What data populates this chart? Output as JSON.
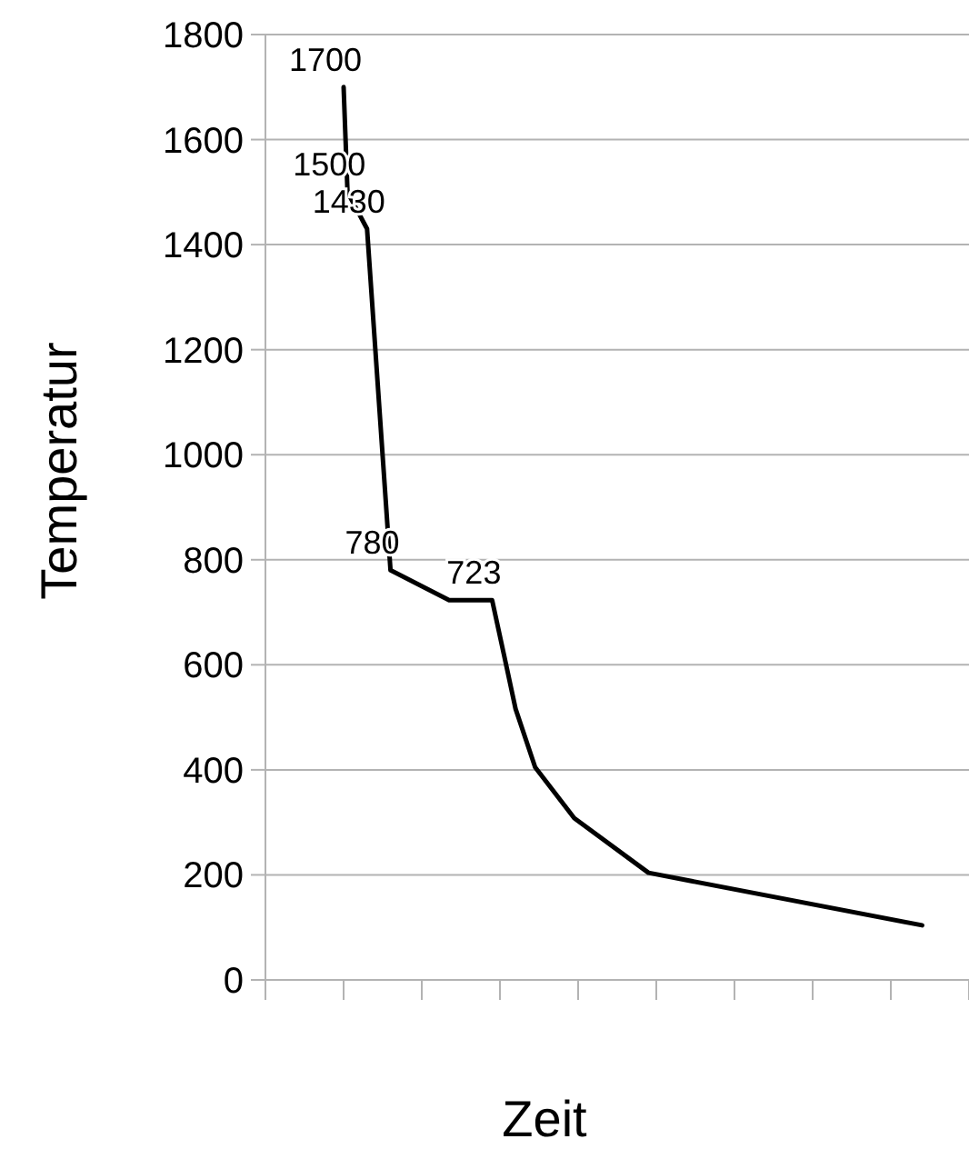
{
  "chart_data": {
    "type": "line",
    "xlabel": "Zeit",
    "ylabel": "Temperatur",
    "categories": [
      null,
      null,
      null,
      null,
      null,
      null,
      null,
      null,
      null,
      null,
      null,
      null,
      null,
      null,
      null,
      null,
      null,
      null,
      null,
      null,
      null,
      null,
      null,
      null,
      null,
      null,
      null,
      null,
      null,
      null,
      null,
      null,
      null,
      null,
      null,
      null,
      null,
      null,
      null,
      null,
      null,
      null,
      null,
      null,
      null,
      null,
      null,
      null,
      null,
      null,
      null,
      null,
      null,
      null,
      null,
      null,
      null,
      null,
      null,
      null,
      null,
      null,
      null,
      null,
      null,
      null,
      null,
      null,
      null,
      null,
      null,
      null,
      null,
      null,
      null,
      null,
      null,
      null,
      null,
      null,
      null,
      null,
      null,
      null,
      null,
      null,
      null,
      null,
      null,
      null,
      null,
      null,
      null,
      null,
      null,
      null,
      null,
      null,
      null,
      null,
      null,
      null,
      null,
      null,
      null,
      null,
      null,
      null,
      null,
      null,
      null,
      null,
      null,
      null,
      null,
      null,
      null,
      null,
      null,
      null,
      null,
      null,
      null,
      null,
      null,
      null,
      null,
      null,
      null,
      null,
      null,
      null,
      null,
      null,
      null,
      null,
      null,
      null,
      null,
      null,
      null,
      null,
      null,
      null,
      null,
      null,
      null,
      null,
      null,
      null,
      null,
      null,
      null,
      null,
      null,
      null,
      null,
      null,
      null,
      null,
      null,
      null,
      null,
      null,
      null,
      null,
      null,
      null,
      null,
      null,
      null,
      null,
      null,
      null,
      null,
      null,
      null,
      null,
      null,
      null,
      null
    ],
    "series": [
      {
        "color": "#000000",
        "values": [
          null,
          null,
          null,
          null,
          null,
          null,
          null,
          null,
          null,
          null,
          null,
          null,
          null,
          null,
          null,
          null,
          null,
          null,
          null,
          null,
          1700,
          1500,
          null,
          null,
          null,
          null,
          1430,
          null,
          null,
          null,
          null,
          null,
          780,
          null,
          null,
          null,
          null,
          null,
          null,
          null,
          null,
          null,
          null,
          null,
          null,
          null,
          null,
          723,
          null,
          null,
          null,
          null,
          null,
          null,
          null,
          null,
          null,
          null,
          723,
          null,
          null,
          620,
          null,
          null,
          516,
          null,
          null,
          null,
          null,
          405,
          null,
          null,
          null,
          null,
          null,
          null,
          null,
          null,
          null,
          308,
          null,
          null,
          null,
          null,
          null,
          null,
          null,
          null,
          null,
          null,
          null,
          null,
          null,
          null,
          null,
          null,
          null,
          null,
          204,
          null,
          null,
          null,
          null,
          null,
          null,
          null,
          null,
          null,
          null,
          null,
          null,
          null,
          null,
          null,
          null,
          null,
          null,
          null,
          null,
          null,
          null,
          null,
          null,
          null,
          null,
          null,
          null,
          null,
          null,
          null,
          null,
          null,
          null,
          null,
          null,
          null,
          null,
          null,
          null,
          null,
          null,
          null,
          null,
          null,
          null,
          null,
          null,
          null,
          null,
          null,
          null,
          null,
          null,
          null,
          null,
          null,
          null,
          null,
          null,
          null,
          null,
          null,
          null,
          null,
          null,
          null,
          null,
          null,
          104,
          null,
          null,
          null,
          null,
          null,
          null,
          null,
          null,
          null,
          null,
          null,
          null
        ]
      }
    ],
    "ylim": [
      0,
      1800
    ],
    "yticks": [
      0,
      200,
      400,
      600,
      800,
      1000,
      1200,
      1400,
      1600,
      1800
    ],
    "tick_labels": "y",
    "grid": "y",
    "marker": "none",
    "line_style": "solid",
    "value_labels": [
      null,
      null,
      null,
      null,
      null,
      null,
      null,
      null,
      null,
      null,
      null,
      null,
      null,
      null,
      null,
      null,
      null,
      null,
      null,
      null,
      "1700",
      "1500",
      null,
      null,
      null,
      null,
      "1430",
      null,
      null,
      null,
      null,
      null,
      "780",
      null,
      null,
      null,
      null,
      null,
      null,
      null,
      null,
      null,
      null,
      null,
      null,
      null,
      null,
      null,
      null,
      null,
      null,
      null,
      null,
      null,
      null,
      null,
      null,
      null,
      "723",
      null,
      null,
      null,
      null,
      null,
      null,
      null,
      null,
      null,
      null,
      null,
      null,
      null,
      null,
      null,
      null,
      null,
      null,
      null,
      null,
      null,
      null,
      null,
      null,
      null,
      null,
      null,
      null,
      null,
      null,
      null,
      null,
      null,
      null,
      null,
      null,
      null,
      null,
      null,
      null,
      null,
      null,
      null,
      null,
      null,
      null,
      null,
      null,
      null,
      null,
      null,
      null,
      null,
      null,
      null,
      null,
      null,
      null,
      null,
      null,
      null,
      null,
      null,
      null,
      null,
      null,
      null,
      null,
      null,
      null,
      null,
      null,
      null,
      null,
      null,
      null,
      null,
      null,
      null,
      null,
      null,
      null,
      null,
      null,
      null,
      null,
      null,
      null,
      null,
      null,
      null,
      null,
      null,
      null,
      null,
      null,
      null,
      null,
      null,
      null,
      null,
      null,
      null,
      null,
      null,
      null,
      null,
      null,
      null,
      null,
      null,
      null,
      null,
      null
    ]
  }
}
